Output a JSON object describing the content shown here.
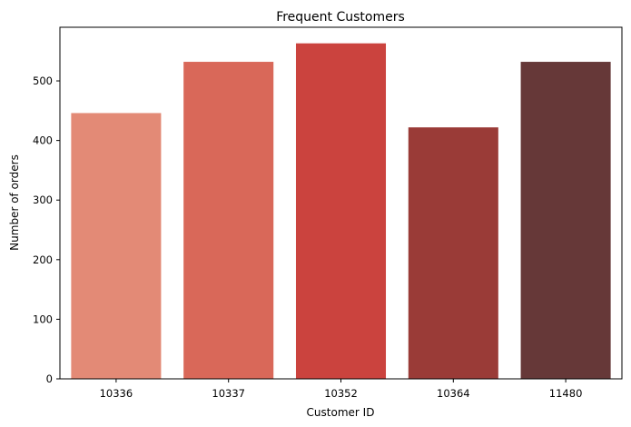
{
  "chart_data": {
    "type": "bar",
    "title": "Frequent Customers",
    "xlabel": "Customer ID",
    "ylabel": "Number of orders",
    "categories": [
      "10336",
      "10337",
      "10352",
      "10364",
      "11480"
    ],
    "values": [
      446,
      532,
      563,
      422,
      532
    ],
    "colors": [
      "#e38a76",
      "#d96859",
      "#cb433e",
      "#9a3b37",
      "#663838"
    ],
    "ylim": [
      0,
      590
    ],
    "yticks": [
      0,
      100,
      200,
      300,
      400,
      500
    ],
    "grid": false,
    "legend": "none"
  }
}
